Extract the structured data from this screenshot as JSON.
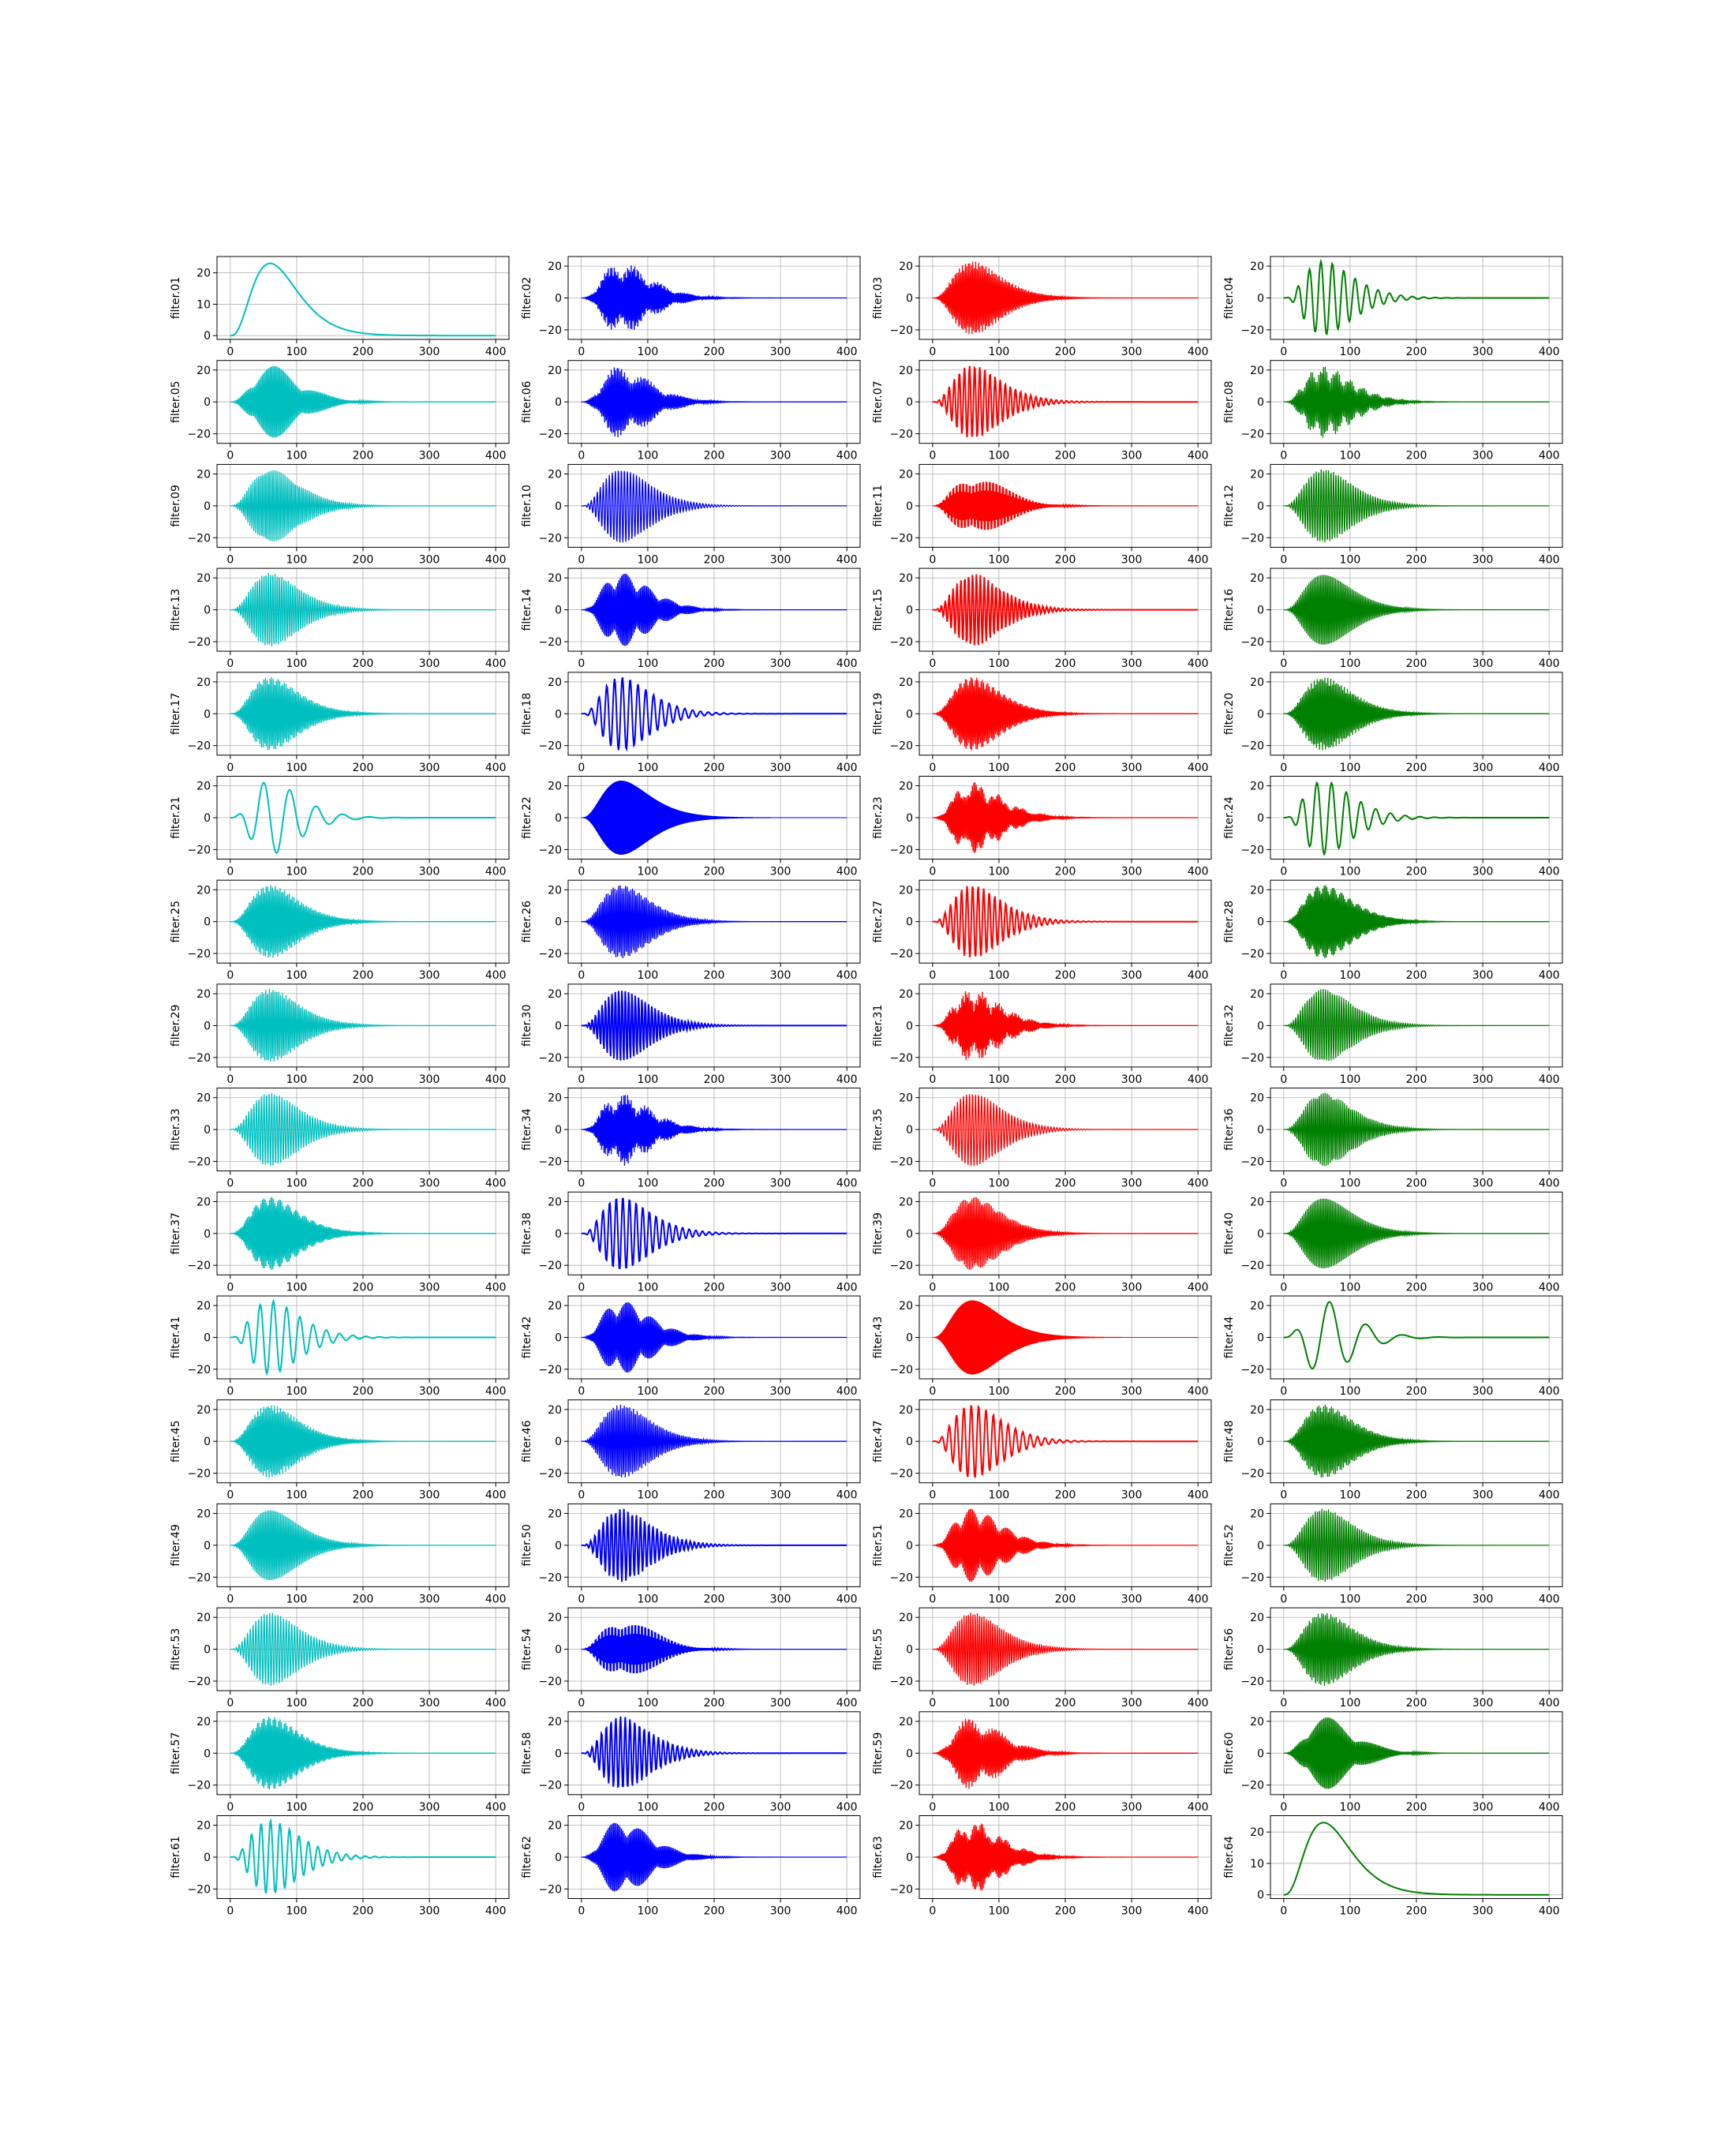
{
  "chart_data": {
    "type": "line",
    "layout": "16x4 grid of small multiples",
    "grid": true,
    "xlim": [
      0,
      400
    ],
    "x_ticks": [
      0,
      100,
      200,
      300,
      400
    ],
    "y_ticks_signed": [
      -20,
      0,
      20
    ],
    "y_ticks_positive": [
      0,
      10,
      20
    ],
    "colors": {
      "col1": "#00bfbf",
      "col2": "#0000ff",
      "col3": "#ff0000",
      "col4": "#008000"
    },
    "description_of_signals": "Each panel is a gammatone-like filter impulse response: a carrier oscillation under an envelope rising to about 23 near x=60 and decaying toward 0 by x=400. filter.01 and filter.64 show the positive envelope only.",
    "panels": [
      {
        "label": "filter.01",
        "color": "#00bfbf",
        "kind": "envelope",
        "ylim": [
          0,
          24
        ]
      },
      {
        "label": "filter.02",
        "color": "#0000ff",
        "kind": "oscillation",
        "freq": 0.55,
        "beat": 0.025
      },
      {
        "label": "filter.03",
        "color": "#ff0000",
        "kind": "oscillation",
        "freq": 0.45
      },
      {
        "label": "filter.04",
        "color": "#008000",
        "kind": "oscillation",
        "freq": 0.058
      },
      {
        "label": "filter.05",
        "color": "#00bfbf",
        "kind": "oscillation",
        "freq": 0.5,
        "beat": 0.014
      },
      {
        "label": "filter.06",
        "color": "#0000ff",
        "kind": "oscillation",
        "freq": 0.45,
        "beat": 0.02
      },
      {
        "label": "filter.07",
        "color": "#ff0000",
        "kind": "oscillation",
        "freq": 0.13
      },
      {
        "label": "filter.08",
        "color": "#008000",
        "kind": "oscillation",
        "freq": 0.42,
        "beat": 0.05
      },
      {
        "label": "filter.09",
        "color": "#00bfbf",
        "kind": "oscillation",
        "freq": 0.33
      },
      {
        "label": "filter.10",
        "color": "#0000ff",
        "kind": "oscillation",
        "freq": 0.22
      },
      {
        "label": "filter.11",
        "color": "#ff0000",
        "kind": "oscillation",
        "freq": 0.6,
        "beat": 0.0085
      },
      {
        "label": "filter.12",
        "color": "#008000",
        "kind": "oscillation",
        "freq": 0.27
      },
      {
        "label": "filter.13",
        "color": "#00bfbf",
        "kind": "oscillation",
        "freq": 0.3
      },
      {
        "label": "filter.14",
        "color": "#0000ff",
        "kind": "oscillation",
        "freq": 0.5,
        "beat": 0.03
      },
      {
        "label": "filter.15",
        "color": "#ff0000",
        "kind": "oscillation",
        "freq": 0.17
      },
      {
        "label": "filter.16",
        "color": "#008000",
        "kind": "oscillation",
        "freq": 0.4
      },
      {
        "label": "filter.17",
        "color": "#00bfbf",
        "kind": "oscillation",
        "freq": 0.42
      },
      {
        "label": "filter.18",
        "color": "#0000ff",
        "kind": "oscillation",
        "freq": 0.085
      },
      {
        "label": "filter.19",
        "color": "#ff0000",
        "kind": "oscillation",
        "freq": 0.47
      },
      {
        "label": "filter.20",
        "color": "#008000",
        "kind": "oscillation",
        "freq": 0.44
      },
      {
        "label": "filter.21",
        "color": "#00bfbf",
        "kind": "oscillation",
        "freq": 0.025
      },
      {
        "label": "filter.22",
        "color": "#0000ff",
        "kind": "filled",
        "freq": 0.98
      },
      {
        "label": "filter.23",
        "color": "#ff0000",
        "kind": "oscillation",
        "freq": 0.52,
        "beat": 0.03
      },
      {
        "label": "filter.24",
        "color": "#008000",
        "kind": "oscillation",
        "freq": 0.045
      },
      {
        "label": "filter.25",
        "color": "#00bfbf",
        "kind": "oscillation",
        "freq": 0.43
      },
      {
        "label": "filter.26",
        "color": "#0000ff",
        "kind": "oscillation",
        "freq": 0.38
      },
      {
        "label": "filter.27",
        "color": "#ff0000",
        "kind": "oscillation",
        "freq": 0.12
      },
      {
        "label": "filter.28",
        "color": "#008000",
        "kind": "oscillation",
        "freq": 0.48
      },
      {
        "label": "filter.29",
        "color": "#00bfbf",
        "kind": "oscillation",
        "freq": 0.36
      },
      {
        "label": "filter.30",
        "color": "#0000ff",
        "kind": "oscillation",
        "freq": 0.2
      },
      {
        "label": "filter.31",
        "color": "#ff0000",
        "kind": "oscillation",
        "freq": 0.55,
        "beat": 0.04
      },
      {
        "label": "filter.32",
        "color": "#008000",
        "kind": "oscillation",
        "freq": 0.29
      },
      {
        "label": "filter.33",
        "color": "#00bfbf",
        "kind": "oscillation",
        "freq": 0.26
      },
      {
        "label": "filter.34",
        "color": "#0000ff",
        "kind": "oscillation",
        "freq": 0.55,
        "beat": 0.03
      },
      {
        "label": "filter.35",
        "color": "#ff0000",
        "kind": "oscillation",
        "freq": 0.22
      },
      {
        "label": "filter.36",
        "color": "#008000",
        "kind": "oscillation",
        "freq": 0.34
      },
      {
        "label": "filter.37",
        "color": "#00bfbf",
        "kind": "oscillation",
        "freq": 0.48
      },
      {
        "label": "filter.38",
        "color": "#0000ff",
        "kind": "oscillation",
        "freq": 0.1
      },
      {
        "label": "filter.39",
        "color": "#ff0000",
        "kind": "oscillation",
        "freq": 0.41
      },
      {
        "label": "filter.40",
        "color": "#008000",
        "kind": "oscillation",
        "freq": 0.4
      },
      {
        "label": "filter.41",
        "color": "#00bfbf",
        "kind": "oscillation",
        "freq": 0.05
      },
      {
        "label": "filter.42",
        "color": "#0000ff",
        "kind": "oscillation",
        "freq": 0.5,
        "beat": 0.028
      },
      {
        "label": "filter.43",
        "color": "#ff0000",
        "kind": "filled",
        "freq": 0.98
      },
      {
        "label": "filter.44",
        "color": "#008000",
        "kind": "oscillation",
        "freq": 0.018
      },
      {
        "label": "filter.45",
        "color": "#00bfbf",
        "kind": "oscillation",
        "freq": 0.44
      },
      {
        "label": "filter.46",
        "color": "#0000ff",
        "kind": "oscillation",
        "freq": 0.36
      },
      {
        "label": "filter.47",
        "color": "#ff0000",
        "kind": "oscillation",
        "freq": 0.09
      },
      {
        "label": "filter.48",
        "color": "#008000",
        "kind": "oscillation",
        "freq": 0.42
      },
      {
        "label": "filter.49",
        "color": "#00bfbf",
        "kind": "oscillation",
        "freq": 0.4
      },
      {
        "label": "filter.50",
        "color": "#0000ff",
        "kind": "oscillation",
        "freq": 0.16
      },
      {
        "label": "filter.51",
        "color": "#ff0000",
        "kind": "oscillation",
        "freq": 0.5,
        "beat": 0.035
      },
      {
        "label": "filter.52",
        "color": "#008000",
        "kind": "oscillation",
        "freq": 0.3
      },
      {
        "label": "filter.53",
        "color": "#00bfbf",
        "kind": "oscillation",
        "freq": 0.24
      },
      {
        "label": "filter.54",
        "color": "#0000ff",
        "kind": "oscillation",
        "freq": 0.6,
        "beat": 0.0085
      },
      {
        "label": "filter.55",
        "color": "#ff0000",
        "kind": "oscillation",
        "freq": 0.3
      },
      {
        "label": "filter.56",
        "color": "#008000",
        "kind": "oscillation",
        "freq": 0.37
      },
      {
        "label": "filter.57",
        "color": "#00bfbf",
        "kind": "oscillation",
        "freq": 0.47
      },
      {
        "label": "filter.58",
        "color": "#0000ff",
        "kind": "oscillation",
        "freq": 0.14
      },
      {
        "label": "filter.59",
        "color": "#ff0000",
        "kind": "oscillation",
        "freq": 0.45,
        "beat": 0.02
      },
      {
        "label": "filter.60",
        "color": "#008000",
        "kind": "oscillation",
        "freq": 0.5,
        "beat": 0.014
      },
      {
        "label": "filter.61",
        "color": "#00bfbf",
        "kind": "oscillation",
        "freq": 0.07
      },
      {
        "label": "filter.62",
        "color": "#0000ff",
        "kind": "oscillation",
        "freq": 0.5,
        "beat": 0.022
      },
      {
        "label": "filter.63",
        "color": "#ff0000",
        "kind": "oscillation",
        "freq": 0.52,
        "beat": 0.028
      },
      {
        "label": "filter.64",
        "color": "#008000",
        "kind": "envelope",
        "ylim": [
          0,
          24
        ]
      }
    ]
  }
}
